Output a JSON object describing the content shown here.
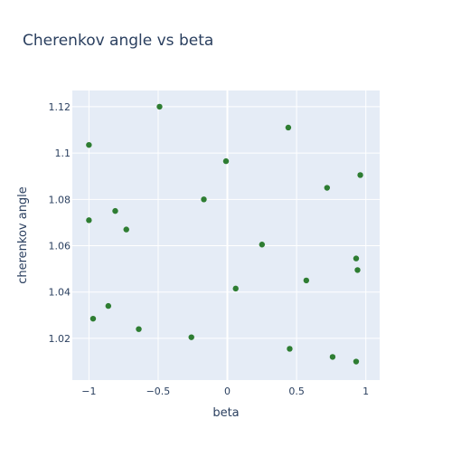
{
  "chart_data": {
    "type": "scatter",
    "title": "Cherenkov angle vs beta",
    "xlabel": "beta",
    "ylabel": "cherenkov angle",
    "xlim": [
      -1.12,
      1.1
    ],
    "ylim": [
      1.002,
      1.127
    ],
    "x_ticks": [
      -1,
      -0.5,
      0,
      0.5,
      1
    ],
    "x_tick_labels": [
      "−1",
      "−0.5",
      "0",
      "0.5",
      "1"
    ],
    "y_ticks": [
      1.02,
      1.04,
      1.06,
      1.08,
      1.1,
      1.12
    ],
    "y_tick_labels": [
      "1.02",
      "1.04",
      "1.06",
      "1.08",
      "1.1",
      "1.12"
    ],
    "grid": true,
    "marker_color": "#2e7d32",
    "plot_bg_color": "#e5ecf6",
    "series": [
      {
        "x": [
          -0.49,
          0.44,
          -1.0,
          -0.01,
          0.96,
          0.72,
          -0.17,
          -1.0,
          -0.81,
          -0.73,
          0.25,
          0.93,
          0.94,
          0.57,
          0.06,
          -0.86,
          -0.97,
          -0.64,
          -0.26,
          0.45,
          0.76,
          0.93
        ],
        "y": [
          1.12,
          1.111,
          1.1035,
          1.0965,
          1.0905,
          1.085,
          1.08,
          1.071,
          1.075,
          1.067,
          1.0605,
          1.0545,
          1.0495,
          1.045,
          1.0415,
          1.034,
          1.0285,
          1.024,
          1.0205,
          1.0155,
          1.012,
          1.01
        ]
      }
    ]
  }
}
